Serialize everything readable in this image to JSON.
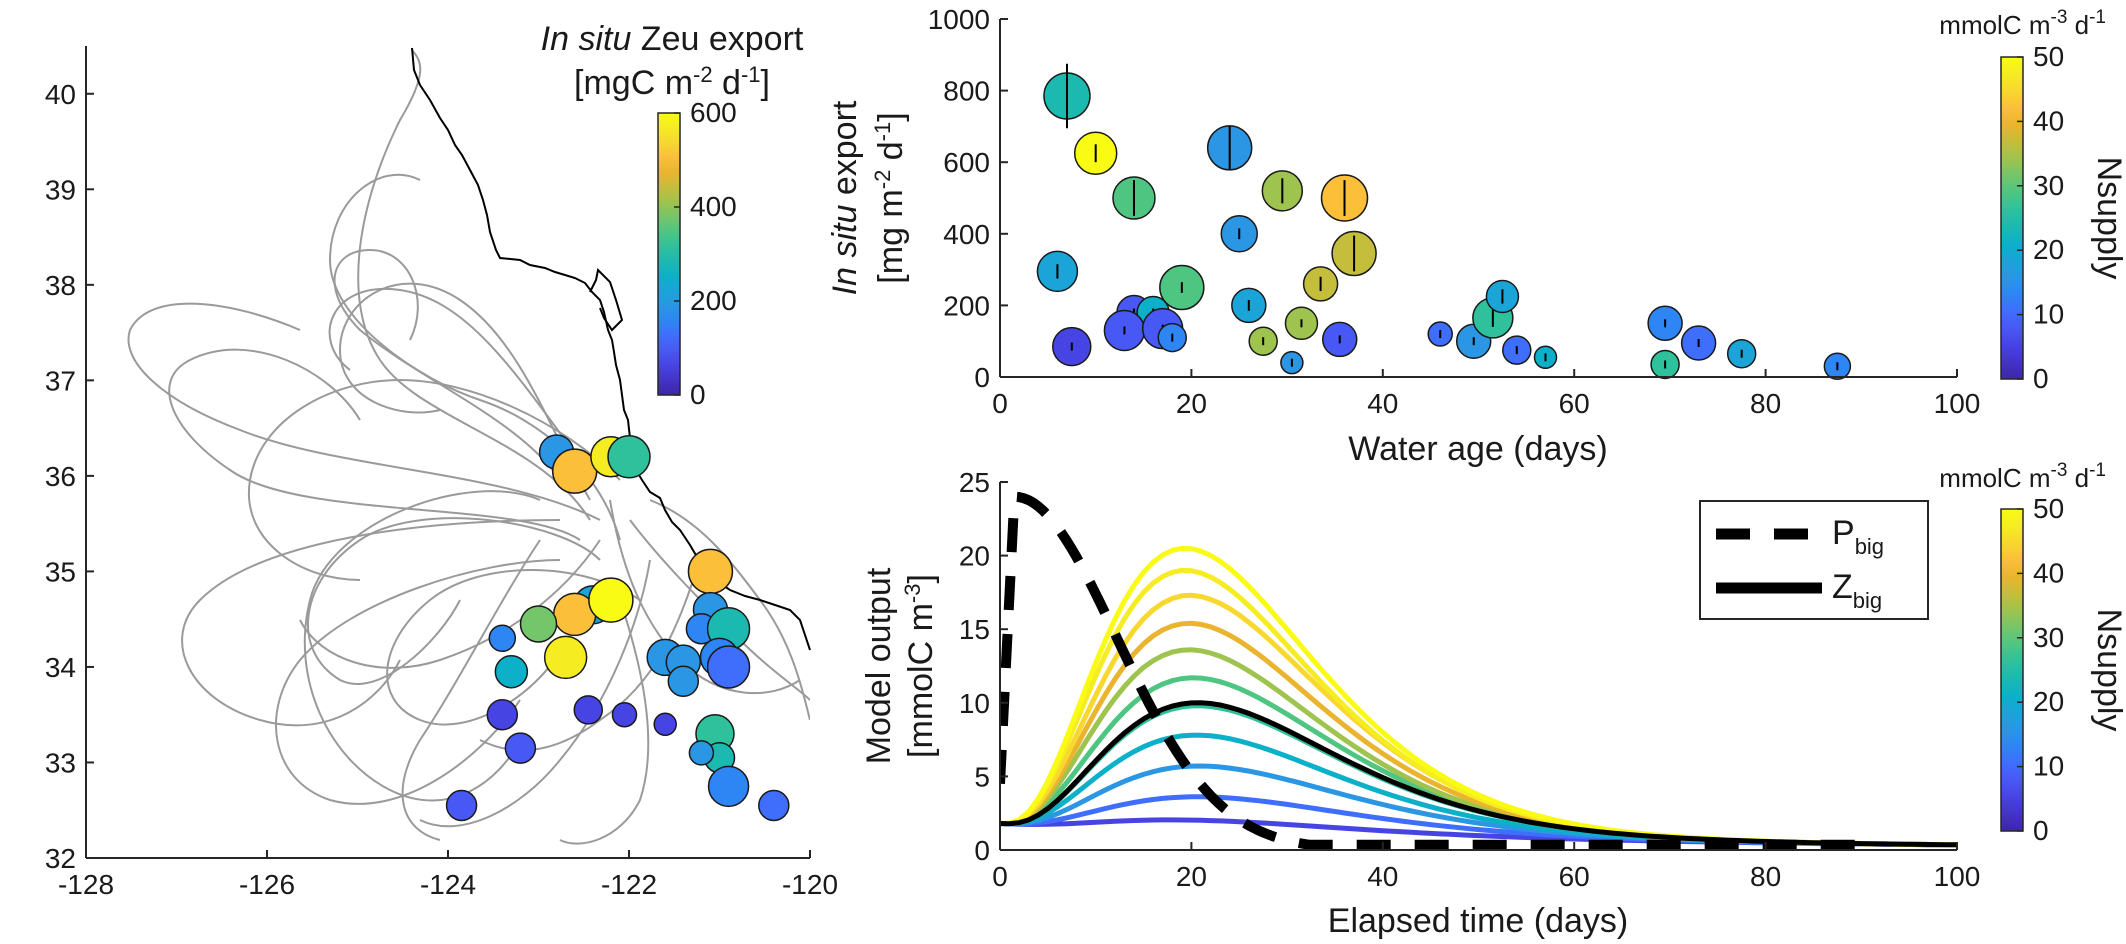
{
  "colors": {
    "parula": [
      "#3e26a8",
      "#4433c8",
      "#4744e4",
      "#4858f4",
      "#3f6efd",
      "#2e85f4",
      "#2a96e4",
      "#1aa4d8",
      "#0cb0c8",
      "#1cb9b0",
      "#2fc19c",
      "#4fc582",
      "#75c56a",
      "#9ec34e",
      "#c5bd3c",
      "#eab42f",
      "#fbbf3a",
      "#f8d72e",
      "#f5ec22",
      "#f9fb14"
    ],
    "track": "#9a9a9a",
    "coast": "#000000"
  },
  "chart_data": [
    {
      "type": "map-scatter",
      "x_ticks": [
        "-128",
        "-126",
        "-124",
        "-122",
        "-120"
      ],
      "y_ticks": [
        "32",
        "33",
        "34",
        "35",
        "36",
        "37",
        "38",
        "39",
        "40"
      ],
      "xlim": [
        -128,
        -120
      ],
      "ylim": [
        32,
        40.5
      ],
      "colorbar": {
        "title_italic": "In situ",
        "title_rest": " Zeu export",
        "unit_base": "[mgC m",
        "unit_exp1": "-2",
        "unit_mid": " d",
        "unit_exp2": "-1",
        "unit_end": "]",
        "ticks": [
          "0",
          "200",
          "400",
          "600"
        ],
        "range": [
          0,
          600
        ]
      },
      "points": [
        {
          "lon": -122.8,
          "lat": 36.25,
          "value": 200,
          "size": 17
        },
        {
          "lon": -122.6,
          "lat": 36.05,
          "value": 520,
          "size": 22
        },
        {
          "lon": -122.2,
          "lat": 36.2,
          "value": 560,
          "size": 20
        },
        {
          "lon": -122.0,
          "lat": 36.2,
          "value": 300,
          "size": 21
        },
        {
          "lon": -121.1,
          "lat": 35.0,
          "value": 500,
          "size": 22
        },
        {
          "lon": -122.4,
          "lat": 34.65,
          "value": 220,
          "size": 19
        },
        {
          "lon": -122.6,
          "lat": 34.55,
          "value": 510,
          "size": 21
        },
        {
          "lon": -122.2,
          "lat": 34.7,
          "value": 600,
          "size": 22
        },
        {
          "lon": -123.0,
          "lat": 34.45,
          "value": 370,
          "size": 18
        },
        {
          "lon": -122.7,
          "lat": 34.1,
          "value": 580,
          "size": 21
        },
        {
          "lon": -123.4,
          "lat": 34.3,
          "value": 150,
          "size": 13
        },
        {
          "lon": -123.3,
          "lat": 33.95,
          "value": 240,
          "size": 16
        },
        {
          "lon": -121.1,
          "lat": 34.6,
          "value": 180,
          "size": 17
        },
        {
          "lon": -121.2,
          "lat": 34.4,
          "value": 160,
          "size": 15
        },
        {
          "lon": -120.9,
          "lat": 34.4,
          "value": 270,
          "size": 21
        },
        {
          "lon": -121.6,
          "lat": 34.1,
          "value": 180,
          "size": 18
        },
        {
          "lon": -121.4,
          "lat": 34.05,
          "value": 200,
          "size": 17
        },
        {
          "lon": -121.4,
          "lat": 33.85,
          "value": 190,
          "size": 15
        },
        {
          "lon": -121.0,
          "lat": 34.1,
          "value": 150,
          "size": 19
        },
        {
          "lon": -120.9,
          "lat": 34.0,
          "value": 130,
          "size": 21
        },
        {
          "lon": -121.05,
          "lat": 33.3,
          "value": 330,
          "size": 19
        },
        {
          "lon": -121.0,
          "lat": 33.05,
          "value": 280,
          "size": 15
        },
        {
          "lon": -121.2,
          "lat": 33.1,
          "value": 200,
          "size": 12
        },
        {
          "lon": -120.9,
          "lat": 32.75,
          "value": 170,
          "size": 20
        },
        {
          "lon": -120.4,
          "lat": 32.55,
          "value": 130,
          "size": 15
        },
        {
          "lon": -123.4,
          "lat": 33.5,
          "value": 60,
          "size": 15
        },
        {
          "lon": -123.2,
          "lat": 33.15,
          "value": 90,
          "size": 15
        },
        {
          "lon": -122.45,
          "lat": 33.55,
          "value": 70,
          "size": 14
        },
        {
          "lon": -122.05,
          "lat": 33.5,
          "value": 60,
          "size": 12
        },
        {
          "lon": -121.6,
          "lat": 33.4,
          "value": 70,
          "size": 11
        },
        {
          "lon": -123.85,
          "lat": 32.55,
          "value": 90,
          "size": 15
        }
      ]
    },
    {
      "type": "scatter",
      "xlabel": "Water age (days)",
      "ylabel_line1_italic": "In situ",
      "ylabel_line1_rest": " export",
      "ylabel_line2_base": "[mg m",
      "ylabel_line2_exp1": "-2",
      "ylabel_line2_mid": " d",
      "ylabel_line2_exp2": "-1",
      "ylabel_line2_end": "]",
      "x_ticks": [
        "0",
        "20",
        "40",
        "60",
        "80",
        "100"
      ],
      "y_ticks": [
        "0",
        "200",
        "400",
        "600",
        "800",
        "1000"
      ],
      "xlim": [
        0,
        100
      ],
      "ylim": [
        0,
        1000
      ],
      "colorbar": {
        "unit_base": "mmolC m",
        "unit_exp1": "-3",
        "unit_mid": " d",
        "unit_exp2": "-1",
        "label": "Nsupply",
        "ticks": [
          "0",
          "10",
          "20",
          "30",
          "40",
          "50"
        ],
        "range": [
          0,
          50
        ]
      },
      "points": [
        {
          "x": 7,
          "y": 785,
          "c": 24,
          "err": 90,
          "size": 23
        },
        {
          "x": 10,
          "y": 625,
          "c": 49,
          "err": 25,
          "size": 21
        },
        {
          "x": 14,
          "y": 500,
          "c": 28,
          "err": 50,
          "size": 21
        },
        {
          "x": 24,
          "y": 640,
          "c": 17,
          "err": 60,
          "size": 22
        },
        {
          "x": 29.5,
          "y": 520,
          "c": 33,
          "err": 35,
          "size": 20
        },
        {
          "x": 36,
          "y": 500,
          "c": 42,
          "err": 50,
          "size": 23
        },
        {
          "x": 6,
          "y": 295,
          "c": 18,
          "err": 20,
          "size": 20
        },
        {
          "x": 25,
          "y": 400,
          "c": 16,
          "err": 15,
          "size": 18
        },
        {
          "x": 19,
          "y": 250,
          "c": 28,
          "err": 15,
          "size": 22
        },
        {
          "x": 33.5,
          "y": 260,
          "c": 37,
          "err": 20,
          "size": 17
        },
        {
          "x": 37,
          "y": 345,
          "c": 36,
          "err": 50,
          "size": 22
        },
        {
          "x": 14,
          "y": 180,
          "c": 9,
          "err": 10,
          "size": 17
        },
        {
          "x": 16,
          "y": 180,
          "c": 22,
          "err": 10,
          "size": 16
        },
        {
          "x": 26,
          "y": 200,
          "c": 18,
          "err": 15,
          "size": 17
        },
        {
          "x": 13,
          "y": 130,
          "c": 8,
          "err": 10,
          "size": 20
        },
        {
          "x": 17,
          "y": 135,
          "c": 7,
          "err": 10,
          "size": 20
        },
        {
          "x": 7.5,
          "y": 85,
          "c": 6,
          "err": 5,
          "size": 19
        },
        {
          "x": 18,
          "y": 110,
          "c": 12,
          "err": 5,
          "size": 14
        },
        {
          "x": 27.5,
          "y": 100,
          "c": 33,
          "err": 5,
          "size": 14
        },
        {
          "x": 31.5,
          "y": 150,
          "c": 33,
          "err": 10,
          "size": 16
        },
        {
          "x": 35.5,
          "y": 105,
          "c": 9,
          "err": 5,
          "size": 17
        },
        {
          "x": 30.5,
          "y": 40,
          "c": 15,
          "err": 3,
          "size": 11
        },
        {
          "x": 46,
          "y": 120,
          "c": 11,
          "err": 5,
          "size": 12
        },
        {
          "x": 49.5,
          "y": 100,
          "c": 17,
          "err": 5,
          "size": 17
        },
        {
          "x": 51.5,
          "y": 165,
          "c": 27,
          "err": 25,
          "size": 20
        },
        {
          "x": 52.5,
          "y": 225,
          "c": 18,
          "err": 20,
          "size": 16
        },
        {
          "x": 54,
          "y": 75,
          "c": 10,
          "err": 5,
          "size": 14
        },
        {
          "x": 57,
          "y": 55,
          "c": 22,
          "err": 3,
          "size": 11
        },
        {
          "x": 69.5,
          "y": 150,
          "c": 12,
          "err": 5,
          "size": 17
        },
        {
          "x": 69.5,
          "y": 35,
          "c": 27,
          "err": 3,
          "size": 14
        },
        {
          "x": 73,
          "y": 95,
          "c": 10,
          "err": 5,
          "size": 17
        },
        {
          "x": 77.5,
          "y": 65,
          "c": 18,
          "err": 5,
          "size": 14
        },
        {
          "x": 87.5,
          "y": 30,
          "c": 13,
          "err": 5,
          "size": 13
        }
      ]
    },
    {
      "type": "line",
      "xlabel": "Elapsed time (days)",
      "ylabel_line1": "Model output",
      "ylabel_line2_base": "[mmolC m",
      "ylabel_line2_exp": "-3",
      "ylabel_line2_end": "]",
      "x_ticks": [
        "0",
        "20",
        "40",
        "60",
        "80",
        "100"
      ],
      "y_ticks": [
        "0",
        "5",
        "10",
        "15",
        "20",
        "25"
      ],
      "xlim": [
        0,
        100
      ],
      "ylim": [
        0,
        25
      ],
      "legend": [
        {
          "base": "P",
          "sub": "big",
          "style": "dashed"
        },
        {
          "base": "Z",
          "sub": "big",
          "style": "solid"
        }
      ],
      "colorbar": {
        "unit_base": "mmolC m",
        "unit_exp1": "-3",
        "unit_mid": " d",
        "unit_exp2": "-1",
        "label": "Nsupply",
        "ticks": [
          "0",
          "10",
          "20",
          "30",
          "40",
          "50"
        ],
        "range": [
          0,
          50
        ]
      },
      "z_curves": [
        {
          "nsupply": 5,
          "peak": 2.0,
          "t_peak": 22
        },
        {
          "nsupply": 10,
          "peak": 3.6,
          "t_peak": 22
        },
        {
          "nsupply": 15,
          "peak": 5.7,
          "t_peak": 21.5
        },
        {
          "nsupply": 20,
          "peak": 7.8,
          "t_peak": 21
        },
        {
          "nsupply": 25,
          "peak": 9.8,
          "t_peak": 21
        },
        {
          "nsupply": 30,
          "peak": 11.7,
          "t_peak": 20.5
        },
        {
          "nsupply": 35,
          "peak": 13.6,
          "t_peak": 20
        },
        {
          "nsupply": 40,
          "peak": 15.4,
          "t_peak": 20
        },
        {
          "nsupply": 45,
          "peak": 17.3,
          "t_peak": 20
        },
        {
          "nsupply": 48,
          "peak": 19.0,
          "t_peak": 19.5
        },
        {
          "nsupply": 50,
          "peak": 20.5,
          "t_peak": 19.5
        }
      ],
      "z_black": {
        "peak": 10.0,
        "t_peak": 21
      },
      "p_big": {
        "style": "dashed",
        "start": 4.5,
        "peak": 24,
        "t_peak": 1.5
      }
    }
  ]
}
